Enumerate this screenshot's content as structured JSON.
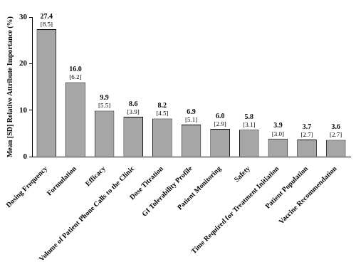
{
  "chart_data": {
    "type": "bar",
    "y_label": "Mean [SD] Relative Attribute Importance (%)",
    "categories": [
      "Dosing Frequency",
      "Formulation",
      "Efficacy",
      "Volume of Patient Phone Calls to the Clinic",
      "Dose Titration",
      "GI Tolerability Profile",
      "Patient Monitoring",
      "Safety",
      "Time Required for Treatment Initiation",
      "Patient Population",
      "Vaccine Recommendation"
    ],
    "values": [
      27.4,
      16.0,
      9.9,
      8.6,
      8.2,
      6.9,
      6.0,
      5.8,
      3.9,
      3.7,
      3.6
    ],
    "value_labels": [
      "27.4",
      "16.0",
      "9.9",
      "8.6",
      "8.2",
      "6.9",
      "6.0",
      "5.8",
      "3.9",
      "3.7",
      "3.6"
    ],
    "sd_labels": [
      "[8.5]",
      "[6.2]",
      "[5.5]",
      "[3.9]",
      "[4.5]",
      "[5.1]",
      "[2.9]",
      "[3.1]",
      "[3.0]",
      "[2.7]",
      "[2.7]"
    ],
    "color": "#a6a6a6",
    "ylim": [
      0,
      30
    ],
    "yticks": [
      0,
      10,
      20,
      30
    ],
    "grid": false,
    "data_labels": true
  }
}
